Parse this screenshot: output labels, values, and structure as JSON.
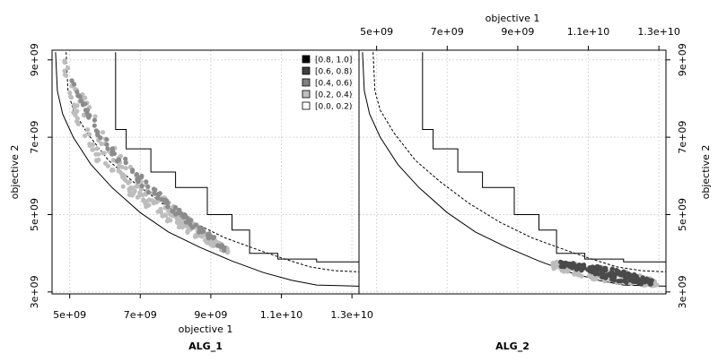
{
  "chart_data": {
    "type": "scatter",
    "xlabel": "objective 1",
    "ylabel": "objective 2",
    "xlim": [
      4500000000.0,
      13200000000.0
    ],
    "ylim": [
      2950000000.0,
      9250000000.0
    ],
    "x_ticks": [
      "5e+09",
      "7e+09",
      "9e+09",
      "1.1e+10",
      "1.3e+10"
    ],
    "y_ticks": [
      "3e+09",
      "5e+09",
      "7e+09",
      "9e+09"
    ],
    "x_tick_values": [
      5000000000.0,
      7000000000.0,
      9000000000.0,
      11000000000.0,
      13000000000.0
    ],
    "y_tick_values": [
      3000000000.0,
      5000000000.0,
      7000000000.0,
      9000000000.0
    ],
    "grid": true,
    "legend_position": "top-right",
    "legend": [
      {
        "label": "[0.8, 1.0]",
        "color": "#000000"
      },
      {
        "label": "[0.6, 0.8)",
        "color": "#404040"
      },
      {
        "label": "[0.4, 0.6)",
        "color": "#808080"
      },
      {
        "label": "[0.2, 0.4)",
        "color": "#bfbfbf"
      },
      {
        "label": "[0.0, 0.2)",
        "color": "#ffffff"
      }
    ],
    "colors": {
      "points_light": "#bdbdbd",
      "points_mid": "#8c8c8c",
      "points_dark": "#4a4a4a",
      "grid": "#d9d9d9",
      "frame": "#000000"
    },
    "reference_curves": {
      "best": [
        [
          4600000000.0,
          9200000000.0
        ],
        [
          4650000000.0,
          8200000000.0
        ],
        [
          4800000000.0,
          7600000000.0
        ],
        [
          5100000000.0,
          7000000000.0
        ],
        [
          5600000000.0,
          6300000000.0
        ],
        [
          6200000000.0,
          5700000000.0
        ],
        [
          7000000000.0,
          5050000000.0
        ],
        [
          7800000000.0,
          4550000000.0
        ],
        [
          8700000000.0,
          4150000000.0
        ],
        [
          9600000000.0,
          3800000000.0
        ],
        [
          10500000000.0,
          3500000000.0
        ],
        [
          11300000000.0,
          3300000000.0
        ],
        [
          12000000000.0,
          3180000000.0
        ],
        [
          13200000000.0,
          3150000000.0
        ]
      ],
      "median": [
        [
          4900000000.0,
          9200000000.0
        ],
        [
          4950000000.0,
          8200000000.0
        ],
        [
          5100000000.0,
          7700000000.0
        ],
        [
          5500000000.0,
          7100000000.0
        ],
        [
          6100000000.0,
          6400000000.0
        ],
        [
          6800000000.0,
          5850000000.0
        ],
        [
          7600000000.0,
          5300000000.0
        ],
        [
          8500000000.0,
          4800000000.0
        ],
        [
          9400000000.0,
          4400000000.0
        ],
        [
          10300000000.0,
          4100000000.0
        ],
        [
          11100000000.0,
          3850000000.0
        ],
        [
          11800000000.0,
          3650000000.0
        ],
        [
          12500000000.0,
          3550000000.0
        ],
        [
          13200000000.0,
          3520000000.0
        ]
      ],
      "worst": [
        [
          6300000000.0,
          9200000000.0
        ],
        [
          6300000000.0,
          7200000000.0
        ],
        [
          6600000000.0,
          7200000000.0
        ],
        [
          6600000000.0,
          6700000000.0
        ],
        [
          7300000000.0,
          6700000000.0
        ],
        [
          7300000000.0,
          6100000000.0
        ],
        [
          8000000000.0,
          6100000000.0
        ],
        [
          8000000000.0,
          5700000000.0
        ],
        [
          8900000000.0,
          5700000000.0
        ],
        [
          8900000000.0,
          5000000000.0
        ],
        [
          9600000000.0,
          5000000000.0
        ],
        [
          9600000000.0,
          4600000000.0
        ],
        [
          10100000000.0,
          4600000000.0
        ],
        [
          10100000000.0,
          4000000000.0
        ],
        [
          10900000000.0,
          4000000000.0
        ],
        [
          10900000000.0,
          3850000000.0
        ],
        [
          12000000000.0,
          3850000000.0
        ],
        [
          12000000000.0,
          3780000000.0
        ],
        [
          13200000000.0,
          3780000000.0
        ]
      ]
    },
    "panels": [
      {
        "title": "ALG_1",
        "ylabel_side": "left",
        "xlabel_side": "bottom",
        "point_groups": [
          {
            "shade": "light",
            "x_range": [
              4850000000.0,
              9500000000.0
            ],
            "upper": [
              [
                4850000000.0,
                9000000000.0
              ],
              [
                5300000000.0,
                8300000000.0
              ],
              [
                6000000000.0,
                7100000000.0
              ],
              [
                7000000000.0,
                6000000000.0
              ],
              [
                8000000000.0,
                5200000000.0
              ],
              [
                9000000000.0,
                4450000000.0
              ],
              [
                9500000000.0,
                4100000000.0
              ]
            ],
            "lower": [
              [
                4850000000.0,
                8700000000.0
              ],
              [
                5100000000.0,
                7600000000.0
              ],
              [
                5800000000.0,
                6300000000.0
              ],
              [
                6800000000.0,
                5400000000.0
              ],
              [
                7800000000.0,
                4800000000.0
              ],
              [
                8800000000.0,
                4300000000.0
              ],
              [
                9500000000.0,
                4000000000.0
              ]
            ],
            "count": 260
          },
          {
            "shade": "mid",
            "x_range": [
              5000000000.0,
              9400000000.0
            ],
            "upper": [
              [
                5000000000.0,
                8600000000.0
              ],
              [
                6000000000.0,
                7000000000.0
              ],
              [
                7200000000.0,
                5850000000.0
              ],
              [
                8200000000.0,
                5050000000.0
              ],
              [
                9400000000.0,
                4200000000.0
              ]
            ],
            "lower": [
              [
                5000000000.0,
                8400000000.0
              ],
              [
                6000000000.0,
                6700000000.0
              ],
              [
                7200000000.0,
                5600000000.0
              ],
              [
                8200000000.0,
                4850000000.0
              ],
              [
                9400000000.0,
                4050000000.0
              ]
            ],
            "count": 110
          }
        ]
      },
      {
        "title": "ALG_2",
        "ylabel_side": "right",
        "xlabel_side": "top",
        "point_groups": [
          {
            "shade": "light",
            "x_range": [
              10000000000.0,
              13000000000.0
            ],
            "upper": [
              [
                10000000000.0,
                3800000000.0
              ],
              [
                11000000000.0,
                3700000000.0
              ],
              [
                12000000000.0,
                3550000000.0
              ],
              [
                13000000000.0,
                3300000000.0
              ]
            ],
            "lower": [
              [
                10000000000.0,
                3600000000.0
              ],
              [
                11000000000.0,
                3350000000.0
              ],
              [
                12000000000.0,
                3200000000.0
              ],
              [
                13000000000.0,
                3150000000.0
              ]
            ],
            "count": 160
          },
          {
            "shade": "dark",
            "x_range": [
              10200000000.0,
              12800000000.0
            ],
            "upper": [
              [
                10200000000.0,
                3780000000.0
              ],
              [
                11000000000.0,
                3720000000.0
              ],
              [
                12000000000.0,
                3550000000.0
              ],
              [
                12800000000.0,
                3300000000.0
              ]
            ],
            "lower": [
              [
                10200000000.0,
                3650000000.0
              ],
              [
                11000000000.0,
                3450000000.0
              ],
              [
                12000000000.0,
                3250000000.0
              ],
              [
                12800000000.0,
                3170000000.0
              ]
            ],
            "count": 140
          }
        ]
      }
    ]
  }
}
